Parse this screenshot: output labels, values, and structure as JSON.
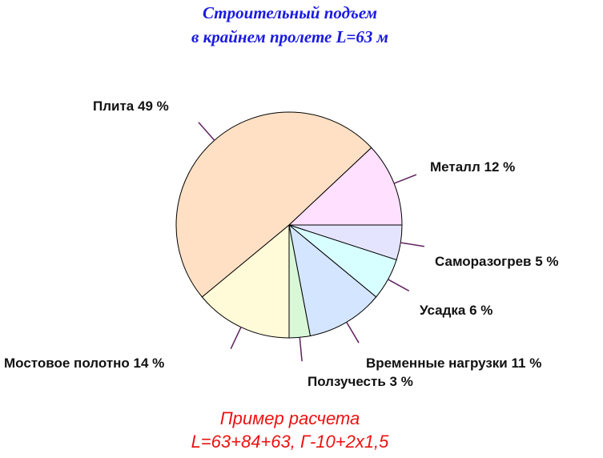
{
  "chart_data": {
    "type": "pie",
    "title": [
      "Строительный подъем",
      "в крайнем пролете L=63 м"
    ],
    "subtitle": [
      "Пример расчета",
      "L=63+84+63, Г-10+2x1,5"
    ],
    "categories": [
      "Саморазогрев",
      "Усадка",
      "Временные нагрузки",
      "Ползучесть",
      "Мостовое полотно",
      "Плита",
      "Металл"
    ],
    "values": [
      5,
      6,
      11,
      3,
      14,
      49,
      12
    ],
    "value_labels": [
      "5 %",
      "6 %",
      "11 %",
      "3 %",
      "14 %",
      "49 %",
      "12 %"
    ],
    "colors": [
      "#e4e4ff",
      "#d8ffff",
      "#d4e6ff",
      "#d8f8d8",
      "#fffad8",
      "#ffe0c4",
      "#ffe0ff"
    ]
  }
}
